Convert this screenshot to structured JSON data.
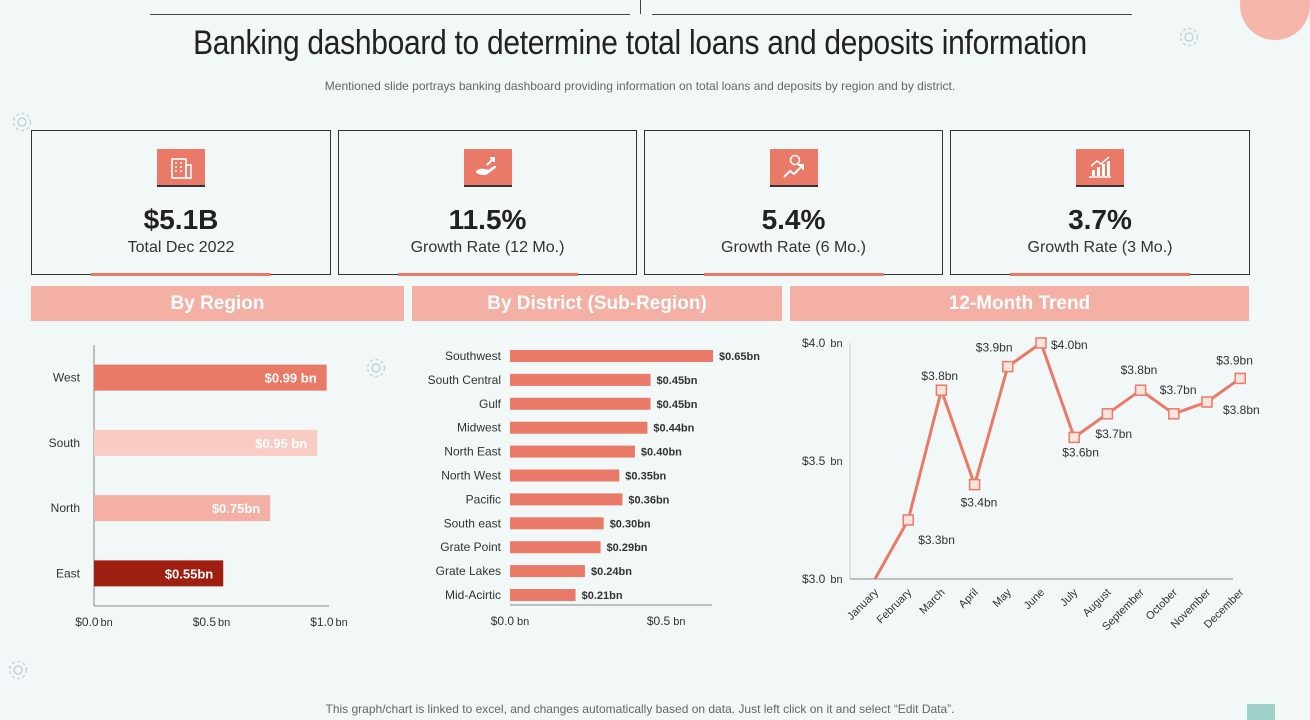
{
  "page": {
    "title": "Banking dashboard to determine total loans and deposits information",
    "subtitle": "Mentioned slide portrays banking dashboard providing information on total loans and deposits by region and by district.",
    "footer": "This graph/chart is linked to excel, and changes automatically based on data. Just left click on it and select “Edit Data”."
  },
  "kpis": [
    {
      "value": "$5.1B",
      "label": "Total Dec 2022",
      "icon": "bank-building-icon"
    },
    {
      "value": "11.5%",
      "label": "Growth Rate (12 Mo.)",
      "icon": "hand-money-icon"
    },
    {
      "value": "5.4%",
      "label": "Growth Rate (6 Mo.)",
      "icon": "growth-arrow-icon"
    },
    {
      "value": "3.7%",
      "label": "Growth Rate (3 Mo.)",
      "icon": "bar-chart-icon"
    }
  ],
  "colors": {
    "accent": "#ea7a68",
    "header": "#f4b0a4",
    "west": "#ea7a68",
    "south": "#f8cbc3",
    "north": "#f4b0a4",
    "east": "#9e1f12",
    "district": "#ea7a68",
    "trend_line": "#ea7a68"
  },
  "sections": {
    "region": "By Region",
    "district": "By District (Sub-Region)",
    "trend": "12-Month Trend"
  },
  "chart_data": [
    {
      "type": "bar",
      "orientation": "horizontal",
      "title": "By Region",
      "categories": [
        "West",
        "South",
        "North",
        "East"
      ],
      "values": [
        0.99,
        0.95,
        0.75,
        0.55
      ],
      "data_labels": [
        "$0.99 bn",
        "$0.95 bn",
        "$0.75bn",
        "$0.55bn"
      ],
      "xlim": [
        0,
        1.0
      ],
      "x_ticks": [
        {
          "label": "$0.0",
          "unit": "bn",
          "v": 0
        },
        {
          "label": "$0.5",
          "unit": "bn",
          "v": 0.5
        },
        {
          "label": "$1.0",
          "unit": "bn",
          "v": 1.0
        }
      ]
    },
    {
      "type": "bar",
      "orientation": "horizontal",
      "title": "By District (Sub-Region)",
      "categories": [
        "Southwest",
        "South Central",
        "Gulf",
        "Midwest",
        "North East",
        "North West",
        "Pacific",
        "South east",
        "Grate Point",
        "Grate Lakes",
        "Mid-Acirtic"
      ],
      "values": [
        0.65,
        0.45,
        0.45,
        0.44,
        0.4,
        0.35,
        0.36,
        0.3,
        0.29,
        0.24,
        0.21
      ],
      "data_labels": [
        "$0.65bn",
        "$0.45bn",
        "$0.45bn",
        "$0.44bn",
        "$0.40bn",
        "$0.35bn",
        "$0.36bn",
        "$0.30bn",
        "$0.29bn",
        "$0.24bn",
        "$0.21bn"
      ],
      "xlim": [
        0,
        0.65
      ],
      "x_ticks": [
        {
          "label": "$0.0",
          "unit": "bn",
          "v": 0
        },
        {
          "label": "$0.5",
          "unit": "bn",
          "v": 0.5
        }
      ]
    },
    {
      "type": "line",
      "title": "12-Month Trend",
      "x": [
        "January",
        "February",
        "March",
        "April",
        "May",
        "June",
        "July",
        "August",
        "September",
        "October",
        "November",
        "December"
      ],
      "values": [
        3.0,
        3.25,
        3.8,
        3.4,
        3.9,
        4.0,
        3.6,
        3.7,
        3.8,
        3.7,
        3.75,
        3.85
      ],
      "markers": [
        null,
        "$3.3bn",
        "$3.8bn",
        "$3.4bn",
        "$3.9bn",
        "$4.0bn",
        "$3.6bn",
        "$3.7bn",
        "$3.8bn",
        "$3.7bn",
        "$3.8bn",
        "$3.9bn"
      ],
      "ylim": [
        3.0,
        4.0
      ],
      "y_ticks": [
        {
          "label": "$3.0",
          "unit": "bn",
          "v": 3.0
        },
        {
          "label": "$3.5",
          "unit": "bn",
          "v": 3.5
        },
        {
          "label": "$4.0",
          "unit": "bn",
          "v": 4.0
        }
      ]
    }
  ]
}
